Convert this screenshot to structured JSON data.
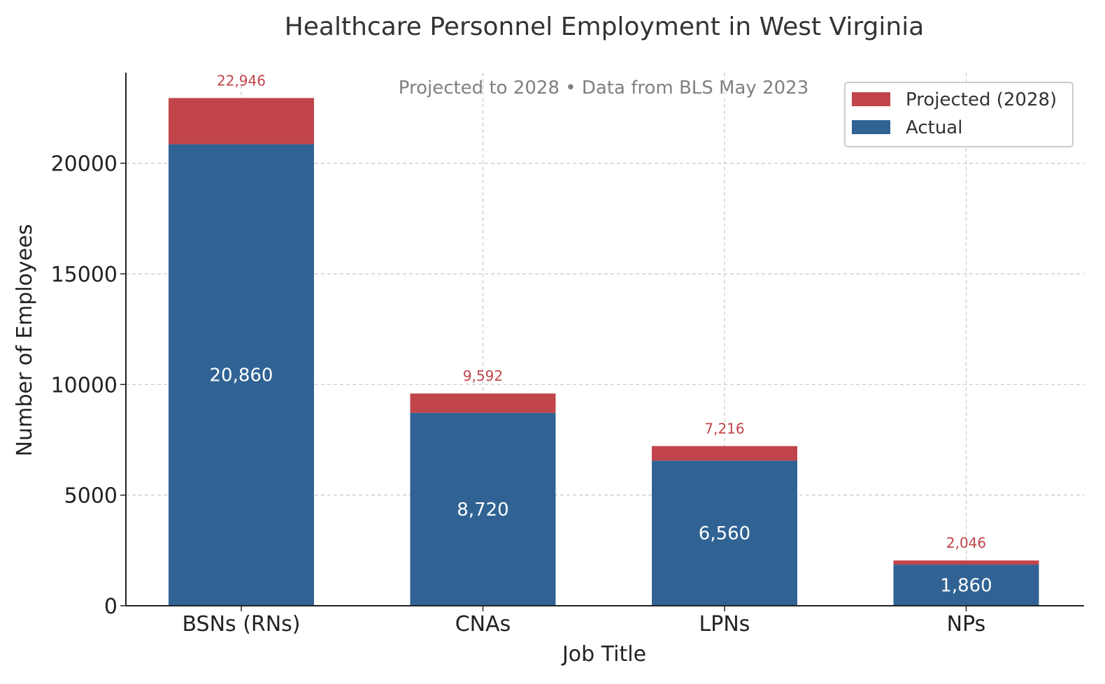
{
  "chart_data": {
    "type": "bar",
    "stacked": true,
    "title": "Healthcare Personnel Employment in West Virginia",
    "subtitle": "Projected to 2028 • Data from BLS May 2023",
    "xlabel": "Job Title",
    "ylabel": "Number of Employees",
    "categories": [
      "BSNs (RNs)",
      "CNAs",
      "LPNs",
      "NPs"
    ],
    "series": [
      {
        "name": "Actual",
        "color": "#306394",
        "values": [
          20860,
          8720,
          6560,
          1860
        ]
      },
      {
        "name": "Projected (2028)",
        "color": "#C0444A",
        "values": [
          2086,
          872,
          656,
          186
        ]
      }
    ],
    "actual_labels": [
      "20,860",
      "8,720",
      "6,560",
      "1,860"
    ],
    "projected_totals": [
      22946,
      9592,
      7216,
      2046
    ],
    "projected_total_labels": [
      "22,946",
      "9,592",
      "7,216",
      "2,046"
    ],
    "yticks": [
      0,
      5000,
      10000,
      15000,
      20000
    ],
    "ytick_labels": [
      "0",
      "5000",
      "10000",
      "15000",
      "20000"
    ],
    "ylim": [
      0,
      24093
    ],
    "grid": true,
    "legend": {
      "position": "top-right",
      "entries": [
        "Projected (2028)",
        "Actual"
      ]
    }
  }
}
